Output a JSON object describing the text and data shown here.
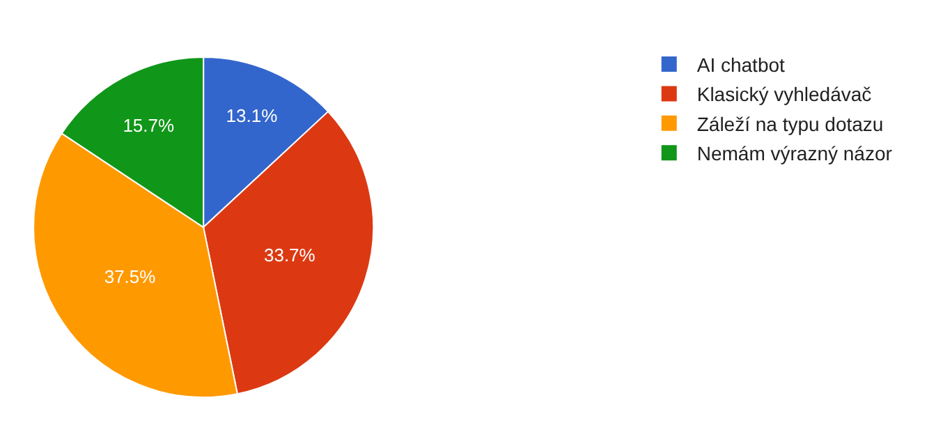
{
  "chart_data": {
    "type": "pie",
    "categories": [
      "AI chatbot",
      "Klasický vyhledávač",
      "Záleží na typu dotazu",
      "Nemám výrazný názor"
    ],
    "values": [
      13.1,
      33.7,
      37.5,
      15.7
    ],
    "value_labels": [
      "13.1%",
      "33.7%",
      "37.5%",
      "15.7%"
    ],
    "colors": [
      "#3366cc",
      "#dc3912",
      "#ff9900",
      "#109618"
    ],
    "legend": "top right"
  }
}
